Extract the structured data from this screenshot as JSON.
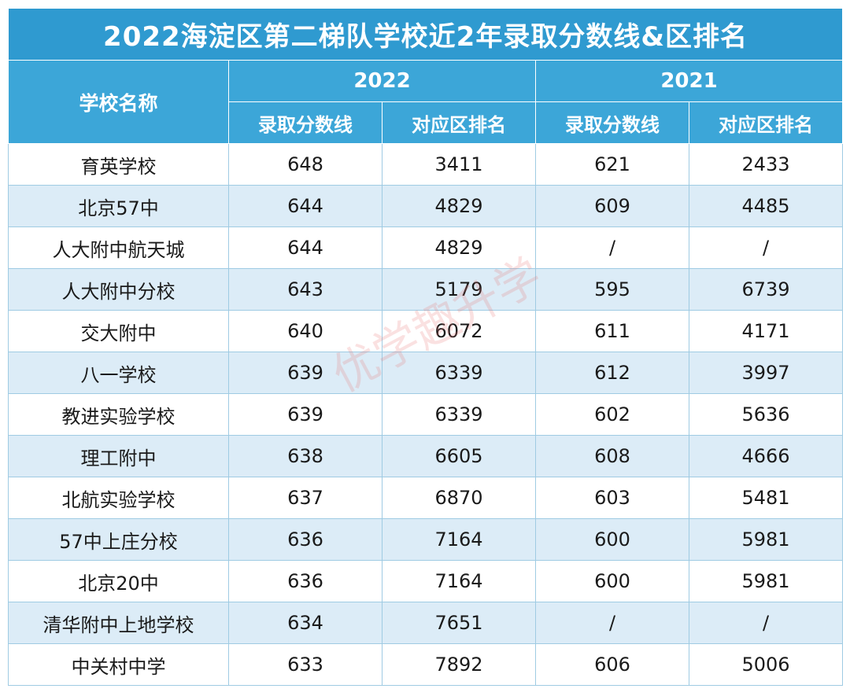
{
  "title": "2022海淀区第二梯队学校近2年录取分数线&区排名",
  "header": {
    "school": "学校名称",
    "years": [
      "2022",
      "2021"
    ],
    "score": "录取分数线",
    "rank": "对应区排名"
  },
  "rows": [
    {
      "school": "育英学校",
      "score2022": "648",
      "rank2022": "3411",
      "score2021": "621",
      "rank2021": "2433"
    },
    {
      "school": "北京57中",
      "score2022": "644",
      "rank2022": "4829",
      "score2021": "609",
      "rank2021": "4485"
    },
    {
      "school": "人大附中航天城",
      "score2022": "644",
      "rank2022": "4829",
      "score2021": "/",
      "rank2021": "/"
    },
    {
      "school": "人大附中分校",
      "score2022": "643",
      "rank2022": "5179",
      "score2021": "595",
      "rank2021": "6739"
    },
    {
      "school": "交大附中",
      "score2022": "640",
      "rank2022": "6072",
      "score2021": "611",
      "rank2021": "4171"
    },
    {
      "school": "八一学校",
      "score2022": "639",
      "rank2022": "6339",
      "score2021": "612",
      "rank2021": "3997"
    },
    {
      "school": "教进实验学校",
      "score2022": "639",
      "rank2022": "6339",
      "score2021": "602",
      "rank2021": "5636"
    },
    {
      "school": "理工附中",
      "score2022": "638",
      "rank2022": "6605",
      "score2021": "608",
      "rank2021": "4666"
    },
    {
      "school": "北航实验学校",
      "score2022": "637",
      "rank2022": "6870",
      "score2021": "603",
      "rank2021": "5481"
    },
    {
      "school": "57中上庄分校",
      "score2022": "636",
      "rank2022": "7164",
      "score2021": "600",
      "rank2021": "5981"
    },
    {
      "school": "北京20中",
      "score2022": "636",
      "rank2022": "7164",
      "score2021": "600",
      "rank2021": "5981"
    },
    {
      "school": "清华附中上地学校",
      "score2022": "634",
      "rank2022": "7651",
      "score2021": "/",
      "rank2021": "/"
    },
    {
      "school": "中关村中学",
      "score2022": "633",
      "rank2022": "7892",
      "score2021": "606",
      "rank2021": "5006"
    }
  ],
  "watermark": "优学趣升学",
  "colors": {
    "header": "#3ca6d8",
    "title": "#2f9ad0",
    "stripe": "#dcecf7"
  }
}
